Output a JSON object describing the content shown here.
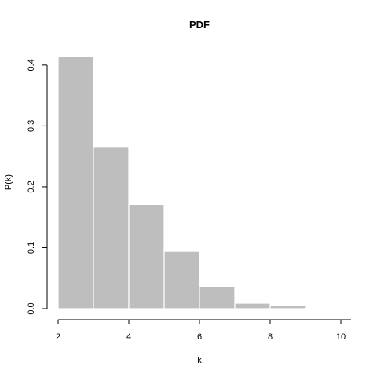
{
  "chart_data": {
    "type": "bar",
    "title": "PDF",
    "xlabel": "k",
    "ylabel": "P(k)",
    "bins": [
      {
        "x0": 2,
        "x1": 3,
        "value": 0.414
      },
      {
        "x0": 3,
        "x1": 4,
        "value": 0.266
      },
      {
        "x0": 4,
        "x1": 5,
        "value": 0.171
      },
      {
        "x0": 5,
        "x1": 6,
        "value": 0.094
      },
      {
        "x0": 6,
        "x1": 7,
        "value": 0.036
      },
      {
        "x0": 7,
        "x1": 8,
        "value": 0.009
      },
      {
        "x0": 8,
        "x1": 9,
        "value": 0.005
      }
    ],
    "xlim": [
      2,
      10
    ],
    "ylim": [
      0,
      0.42
    ],
    "xticks": [
      "2",
      "4",
      "6",
      "8",
      "10"
    ],
    "yticks": [
      "0.0",
      "0.1",
      "0.2",
      "0.3",
      "0.4"
    ],
    "bar_color": "#bebebe",
    "bar_edge_color": "#ffffff",
    "grid": false
  }
}
